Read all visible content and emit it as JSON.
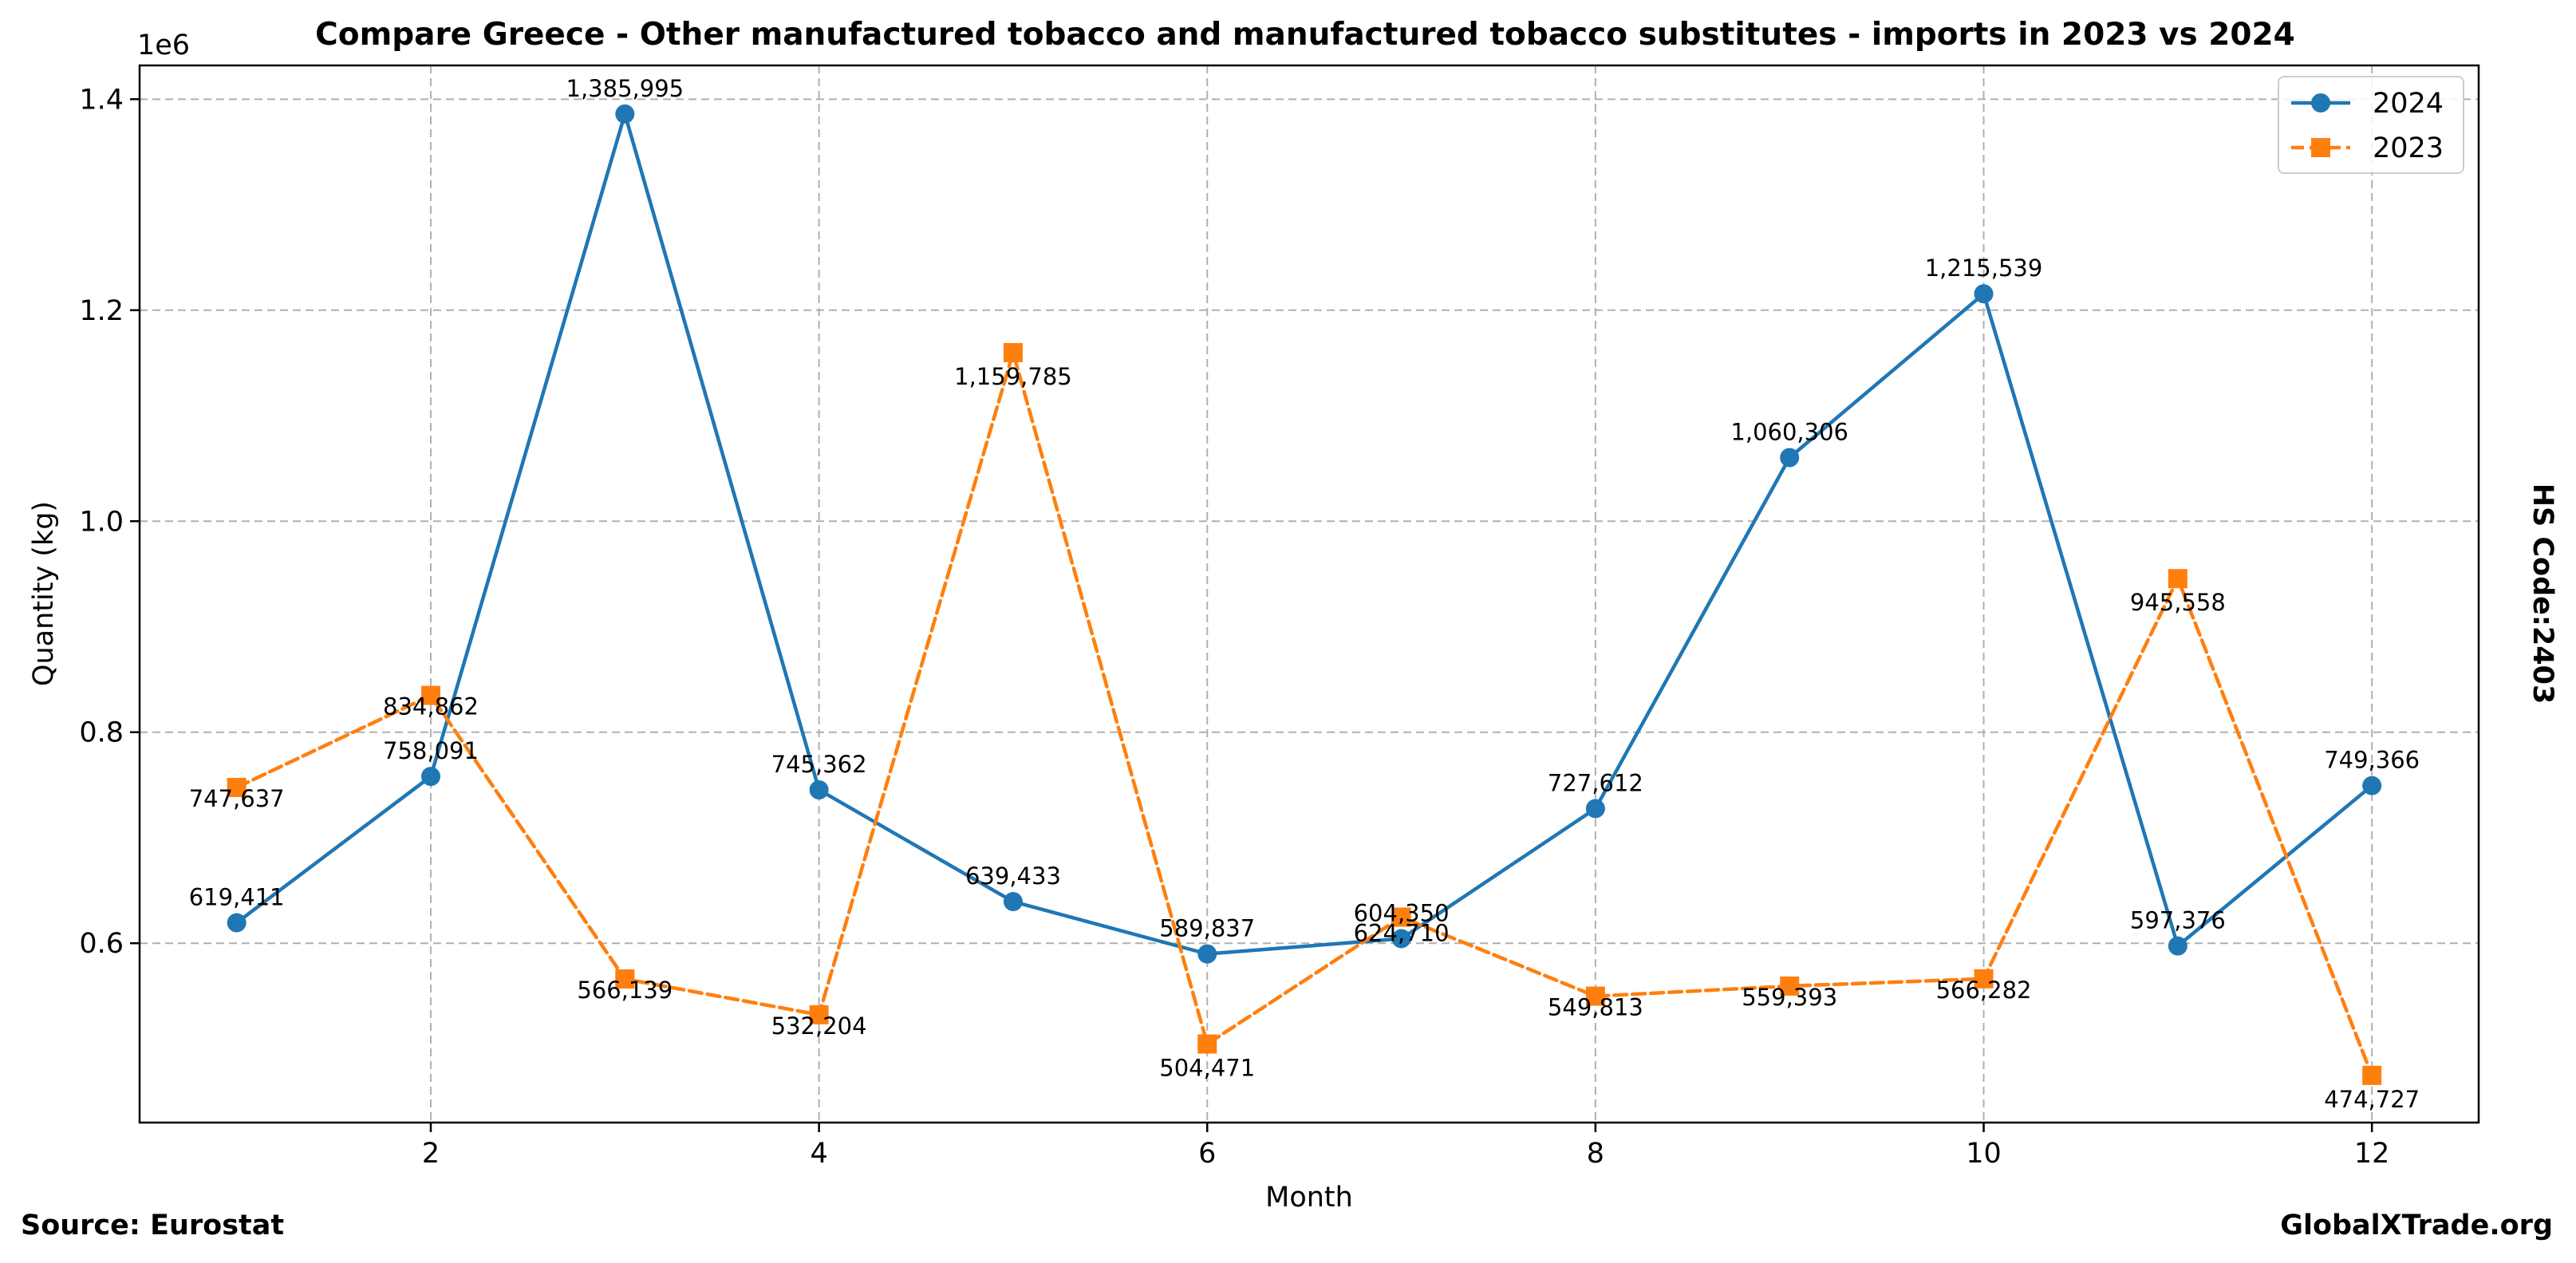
{
  "chart_data": {
    "type": "line",
    "title": "Compare Greece - Other manufactured tobacco and manufactured tobacco substitutes - imports in 2023 vs 2024",
    "xlabel": "Month",
    "ylabel": "Quantity (kg)",
    "y_scale_note": "1e6",
    "xlim": [
      0.5,
      12.55
    ],
    "ylim": [
      430000,
      1432000
    ],
    "x_ticks": [
      2,
      4,
      6,
      8,
      10,
      12
    ],
    "y_ticks": [
      600000,
      800000,
      1000000,
      1200000,
      1400000
    ],
    "y_tick_labels": [
      "0.6",
      "0.8",
      "1.0",
      "1.2",
      "1.4"
    ],
    "grid": true,
    "legend_position": "top-right",
    "x": [
      1,
      2,
      3,
      4,
      5,
      6,
      7,
      8,
      9,
      10,
      11,
      12
    ],
    "series": [
      {
        "name": "2024",
        "color": "#1f77b4",
        "marker": "circle",
        "line_style": "solid",
        "values": [
          619411,
          758091,
          1385995,
          745362,
          639433,
          589837,
          604350,
          727612,
          1060306,
          1215539,
          597376,
          749366
        ],
        "labels": [
          "619,411",
          "758,091",
          "1,385,995",
          "745,362",
          "639,433",
          "589,837",
          "604,350",
          "727,612",
          "1,060,306",
          "1,215,539",
          "597,376",
          "749,366"
        ]
      },
      {
        "name": "2023",
        "color": "#ff7f0e",
        "marker": "square",
        "line_style": "dashed",
        "values": [
          747637,
          834862,
          566139,
          532204,
          1159785,
          504471,
          624710,
          549813,
          559393,
          566282,
          945558,
          474727
        ],
        "labels": [
          "747,637",
          "834,862",
          "566,139",
          "532,204",
          "1,159,785",
          "504,471",
          "624,710",
          "549,813",
          "559,393",
          "566,282",
          "945,558",
          "474,727"
        ]
      }
    ]
  },
  "side_label": "HS Code:2403",
  "footer": {
    "source": "Source: Eurostat",
    "brand": "GlobalXTrade.org"
  }
}
